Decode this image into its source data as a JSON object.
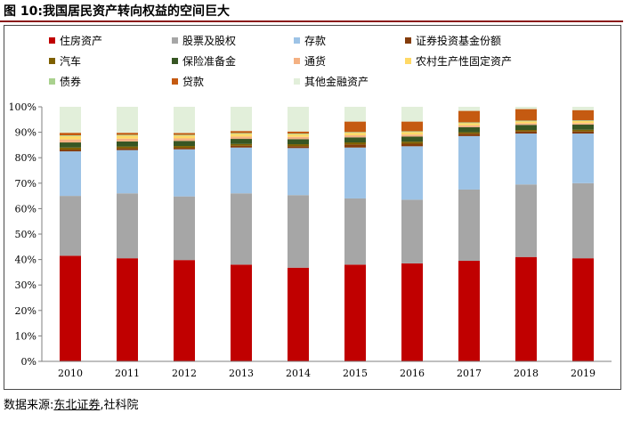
{
  "figure": {
    "title": "图 10:我国居民资产转向权益的空间巨大",
    "source_prefix": "数据来源:",
    "source_org1": "东北证券",
    "source_sep": ",",
    "source_org2": "社科院"
  },
  "chart_data": {
    "type": "bar",
    "stacked": true,
    "normalized_percent": true,
    "title": "",
    "xlabel": "",
    "ylabel": "",
    "ylim": [
      0,
      100
    ],
    "yticks": [
      "0%",
      "10%",
      "20%",
      "30%",
      "40%",
      "50%",
      "60%",
      "70%",
      "80%",
      "90%",
      "100%"
    ],
    "categories": [
      "2010",
      "2011",
      "2012",
      "2013",
      "2014",
      "2015",
      "2016",
      "2017",
      "2018",
      "2019"
    ],
    "legend_position": "top",
    "series": [
      {
        "name": "住房资产",
        "color": "#c00000",
        "values": [
          41.5,
          40.5,
          39.8,
          38.0,
          36.8,
          38.0,
          38.5,
          39.5,
          41.0,
          40.5
        ]
      },
      {
        "name": "股票及股权",
        "color": "#a6a6a6",
        "values": [
          23.5,
          25.5,
          25.0,
          28.0,
          28.5,
          26.0,
          25.0,
          28.0,
          28.5,
          29.5
        ]
      },
      {
        "name": "存款",
        "color": "#9dc3e6",
        "values": [
          17.5,
          17.0,
          18.5,
          18.0,
          18.5,
          20.0,
          21.0,
          21.0,
          20.0,
          19.5
        ]
      },
      {
        "name": "证券投资基金份额",
        "color": "#843c0c",
        "values": [
          0.7,
          0.7,
          0.6,
          0.7,
          0.7,
          1.2,
          1.0,
          0.9,
          0.8,
          0.8
        ]
      },
      {
        "name": "汽车",
        "color": "#7f6000",
        "values": [
          0.8,
          0.7,
          0.7,
          0.7,
          0.8,
          0.8,
          0.8,
          0.6,
          0.6,
          0.7
        ]
      },
      {
        "name": "保险准备金",
        "color": "#375623",
        "values": [
          2.0,
          2.0,
          2.0,
          2.0,
          2.0,
          2.0,
          2.0,
          2.0,
          2.0,
          2.0
        ]
      },
      {
        "name": "通货",
        "color": "#f4b183",
        "values": [
          1.2,
          1.1,
          1.0,
          0.9,
          0.9,
          0.8,
          0.8,
          0.7,
          0.6,
          0.6
        ]
      },
      {
        "name": "农村生产性固定资产",
        "color": "#ffd966",
        "values": [
          1.3,
          1.2,
          1.1,
          1.1,
          1.0,
          1.0,
          1.0,
          0.9,
          0.8,
          0.8
        ]
      },
      {
        "name": "债券",
        "color": "#a9d18e",
        "values": [
          0.3,
          0.3,
          0.3,
          0.3,
          0.3,
          0.3,
          0.3,
          0.3,
          0.3,
          0.3
        ]
      },
      {
        "name": "贷款",
        "color": "#c55a11",
        "values": [
          1.0,
          0.8,
          0.7,
          0.8,
          0.8,
          4.1,
          3.8,
          4.5,
          4.5,
          4.0
        ]
      },
      {
        "name": "其他金融资产",
        "color": "#e2efda",
        "values": [
          10.2,
          10.2,
          10.3,
          9.5,
          9.7,
          5.8,
          5.8,
          1.6,
          0.9,
          1.3
        ]
      }
    ]
  }
}
